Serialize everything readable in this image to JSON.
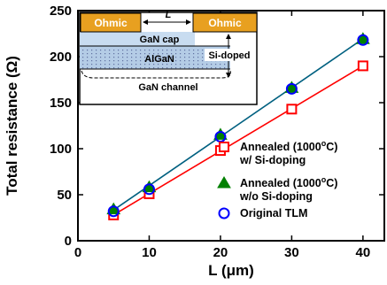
{
  "chart_data": {
    "type": "scatter",
    "xlabel": "L (μm)",
    "ylabel": "Total resistance (Ω)",
    "xlim": [
      0,
      43
    ],
    "ylim": [
      0,
      250
    ],
    "x_ticks": [
      0,
      10,
      20,
      30,
      40
    ],
    "y_ticks": [
      0,
      50,
      100,
      150,
      200,
      250
    ],
    "grid": false,
    "legend_position": "right",
    "series": [
      {
        "name": "Annealed (1000°C) w/ Si-doping",
        "marker": "open-square",
        "color": "#ff0000",
        "x": [
          5,
          10,
          20,
          30,
          40
        ],
        "y": [
          28,
          51,
          98,
          143,
          190
        ],
        "fit_line": true
      },
      {
        "name": "Annealed (1000°C) w/o Si-doping",
        "marker": "filled-triangle",
        "color": "#008000",
        "x": [
          5,
          10,
          20,
          30,
          40
        ],
        "y": [
          34,
          58,
          115,
          166,
          219
        ],
        "fit_line": true
      },
      {
        "name": "Original TLM",
        "marker": "open-circle",
        "color": "#0000ff",
        "x": [
          5,
          10,
          20,
          30,
          40
        ],
        "y": [
          32,
          56,
          113,
          165,
          218
        ],
        "fit_line": true
      }
    ],
    "legend": [
      {
        "line1": "Annealed (1000",
        "sup": "o",
        "line1_end": "C)",
        "line2": "w/ Si-doping"
      },
      {
        "line1": "Annealed (1000",
        "sup": "o",
        "line1_end": "C)",
        "line2": "w/o Si-doping"
      },
      {
        "line1": "Original TLM",
        "sup": "",
        "line1_end": "",
        "line2": ""
      }
    ],
    "inset": {
      "contact_left": "Ohmic",
      "contact_right": "Ohmic",
      "length_label": "L",
      "layer_cap": "GaN cap",
      "layer_barrier": "AlGaN",
      "layer_channel": "GaN channel",
      "doping_label": "Si-doped",
      "colors": {
        "contact": "#e8a020",
        "cap": "#c8dcf0",
        "barrier": "#b4cce6",
        "dots": "#6070a0"
      }
    },
    "fit_line_colors": {
      "red": "#ff0000",
      "teal": "#006080"
    }
  }
}
